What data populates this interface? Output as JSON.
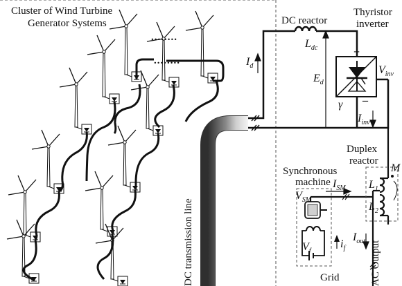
{
  "labels": {
    "cluster_line1": "Cluster of Wind Turbine",
    "cluster_line2": "Generator Systems",
    "ellipsis": "........",
    "dc_reactor": "DC reactor",
    "thyristor_line1": "Thyristor",
    "thyristor_line2": "inverter",
    "duplex_line1": "Duplex",
    "duplex_line2": "reactor",
    "synchronous_line1": "Synchronous",
    "synchronous_line2": "machine",
    "grid": "Grid",
    "dc_transmission_line": "DC transmission line",
    "ac_output": "AC Output"
  },
  "symbols": {
    "L_dc": {
      "main": "L",
      "sub": "dc"
    },
    "I_d": {
      "main": "I",
      "sub": "d"
    },
    "E_d": {
      "main": "E",
      "sub": "d"
    },
    "V_inv": {
      "main": "V",
      "sub": "inv"
    },
    "gamma": {
      "main": "γ",
      "sub": ""
    },
    "I_inv": {
      "main": "I",
      "sub": "inv"
    },
    "M": {
      "main": "M",
      "sub": ""
    },
    "L_1": {
      "main": "L",
      "sub": "1"
    },
    "L_2": {
      "main": "L",
      "sub": "2"
    },
    "I_SM": {
      "main": "I",
      "sub": "SM"
    },
    "V_SM": {
      "main": "V",
      "sub": "SM"
    },
    "V_f": {
      "main": "V",
      "sub": "f"
    },
    "i_f": {
      "main": "i",
      "sub": "f"
    },
    "I_out": {
      "main": "I",
      "sub": "out"
    },
    "plus": {
      "main": "+",
      "sub": ""
    },
    "minus": {
      "main": "–",
      "sub": ""
    }
  },
  "colors": {
    "line": "#111111",
    "dashed": "#555555",
    "cable_dark": "#3a3a3a",
    "cable_light": "#dddddd"
  }
}
